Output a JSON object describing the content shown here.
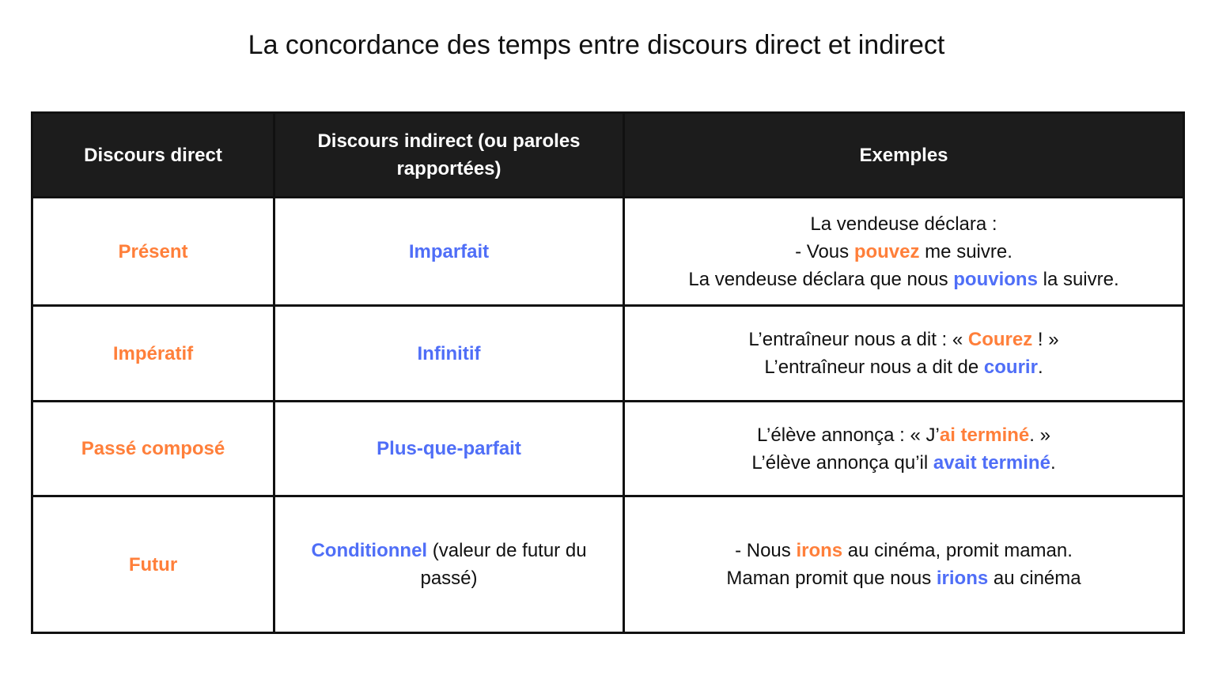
{
  "title": "La concordance des temps entre discours direct et indirect",
  "colors": {
    "direct": "#ff7f3a",
    "indirect": "#4f6ef7",
    "header_bg": "#1c1c1c"
  },
  "headers": [
    "Discours direct",
    "Discours indirect (ou paroles rapportées)",
    "Exemples"
  ],
  "rows": [
    {
      "direct": "Présent",
      "indirect": [
        {
          "t": "Imparfait",
          "c": "bl"
        }
      ],
      "example": [
        [
          {
            "t": "La vendeuse déclara :"
          }
        ],
        [
          {
            "t": "- Vous "
          },
          {
            "t": "pouvez",
            "c": "o"
          },
          {
            "t": " me suivre."
          }
        ],
        [
          {
            "t": "La vendeuse déclara que nous "
          },
          {
            "t": "pouvions",
            "c": "bl"
          },
          {
            "t": " la suivre."
          }
        ]
      ]
    },
    {
      "direct": "Impératif",
      "indirect": [
        {
          "t": "Infinitif",
          "c": "bl"
        }
      ],
      "example": [
        [
          {
            "t": "L’entraîneur nous a dit : « "
          },
          {
            "t": "Courez",
            "c": "o"
          },
          {
            "t": " ! »"
          }
        ],
        [
          {
            "t": "L’entraîneur nous a dit de "
          },
          {
            "t": "courir",
            "c": "bl"
          },
          {
            "t": "."
          }
        ]
      ]
    },
    {
      "direct": "Passé composé",
      "indirect": [
        {
          "t": "Plus-que-parfait",
          "c": "bl"
        }
      ],
      "example": [
        [
          {
            "t": "L’élève annonça : « J’"
          },
          {
            "t": "ai terminé",
            "c": "o"
          },
          {
            "t": ". »"
          }
        ],
        [
          {
            "t": "L’élève annonça qu’il "
          },
          {
            "t": "avait terminé",
            "c": "bl"
          },
          {
            "t": "."
          }
        ]
      ]
    },
    {
      "direct": "Futur",
      "indirect": [
        {
          "t": "Conditionnel",
          "c": "bl"
        },
        {
          "t": " (valeur de futur du passé)"
        }
      ],
      "example": [
        [
          {
            "t": "- Nous "
          },
          {
            "t": "irons",
            "c": "o"
          },
          {
            "t": " au cinéma, promit maman."
          }
        ],
        [
          {
            "t": "Maman promit que nous "
          },
          {
            "t": "irions",
            "c": "bl"
          },
          {
            "t": " au cinéma"
          }
        ]
      ]
    }
  ]
}
